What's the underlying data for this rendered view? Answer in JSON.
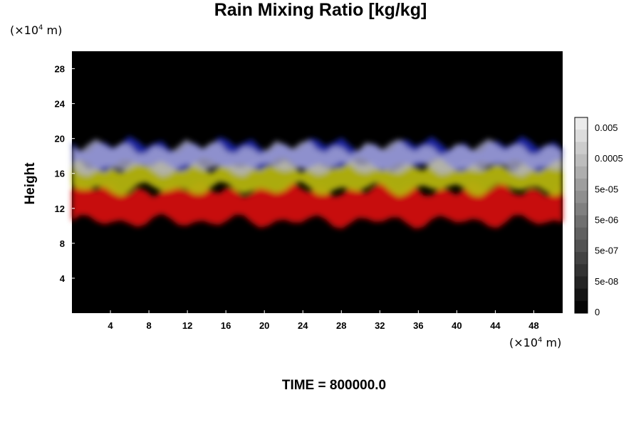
{
  "chart_data": {
    "type": "heatmap",
    "title": "Rain Mixing Ratio [kg/kg]",
    "ylabel": "Height",
    "x_unit": "(×10",
    "x_unit_exp": "4",
    "x_unit_suffix": " m)",
    "y_unit": "(×10",
    "y_unit_exp": "4",
    "y_unit_suffix": " m)",
    "xlim": [
      0,
      51
    ],
    "ylim": [
      0,
      30
    ],
    "xticks": [
      "4",
      "8",
      "12",
      "16",
      "20",
      "24",
      "28",
      "32",
      "36",
      "40",
      "44",
      "48"
    ],
    "yticks": [
      "4",
      "8",
      "12",
      "16",
      "20",
      "24",
      "28"
    ],
    "background_color": "#000000",
    "layers": [
      {
        "color": "#d20a0a",
        "bottom": 10.5,
        "top": 14.2
      },
      {
        "color": "#b4b40f",
        "bottom": 14.2,
        "top": 17.0
      },
      {
        "color": "#1e28aa",
        "bottom": 17.0,
        "top": 19.3
      },
      {
        "color": "#b4b4dc",
        "bottom": 16.5,
        "top": 19.0
      }
    ],
    "colorbar": {
      "labels": [
        "0.005",
        "0.0005",
        "5e-05",
        "5e-06",
        "5e-07",
        "5e-08",
        "0"
      ],
      "levels": 16
    },
    "footer": "TIME = 800000.0"
  }
}
